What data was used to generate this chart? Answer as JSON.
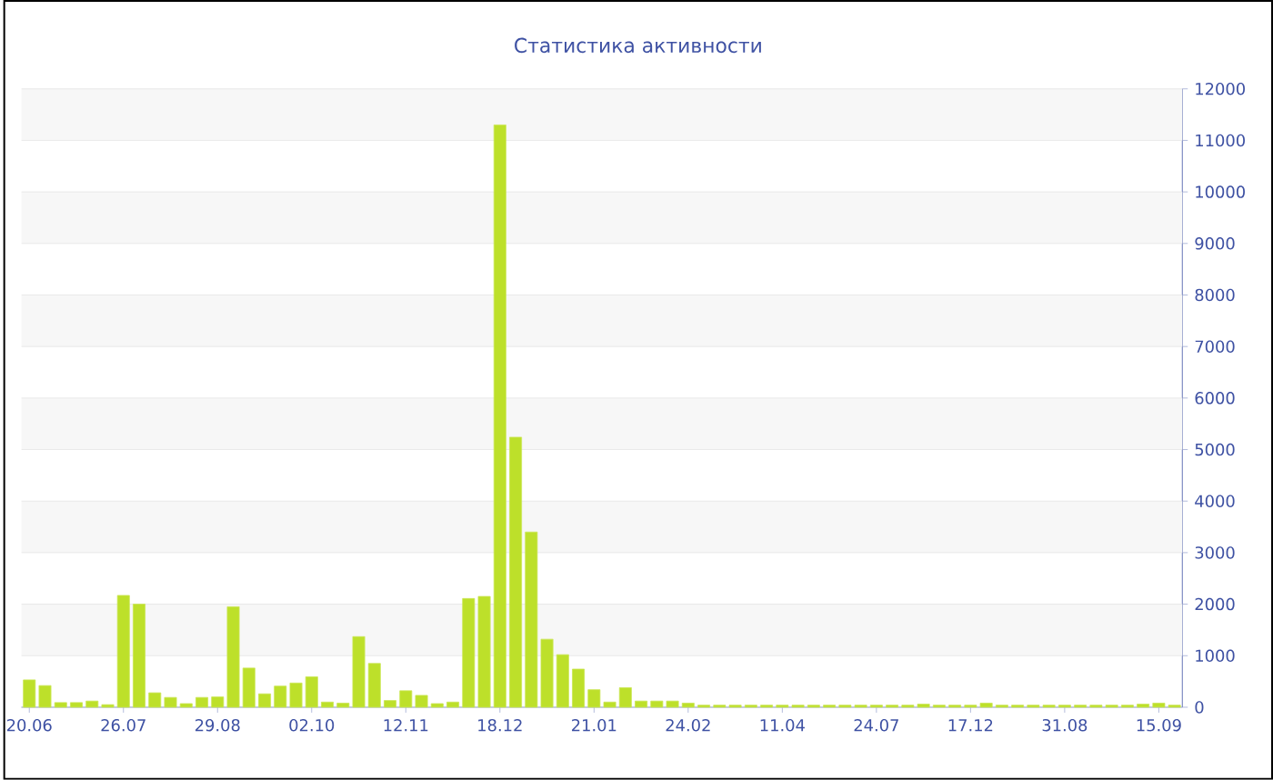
{
  "chart_data": {
    "type": "bar",
    "title": "Статистика активности",
    "categories": [
      "20.06",
      null,
      null,
      null,
      null,
      null,
      "26.07",
      null,
      null,
      null,
      null,
      null,
      "29.08",
      null,
      null,
      null,
      null,
      null,
      "02.10",
      null,
      null,
      null,
      null,
      null,
      "12.11",
      null,
      null,
      null,
      null,
      null,
      "18.12",
      null,
      null,
      null,
      null,
      null,
      "21.01",
      null,
      null,
      null,
      null,
      null,
      "24.02",
      null,
      null,
      null,
      null,
      null,
      "11.04",
      null,
      null,
      null,
      null,
      null,
      "24.07",
      null,
      null,
      null,
      null,
      null,
      "17.12",
      null,
      null,
      null,
      null,
      null,
      "31.08",
      null,
      null,
      null,
      null,
      null,
      "15.09",
      null
    ],
    "values": [
      530,
      420,
      90,
      90,
      120,
      50,
      2170,
      2000,
      280,
      190,
      70,
      190,
      200,
      1950,
      760,
      260,
      410,
      470,
      590,
      100,
      80,
      1370,
      850,
      130,
      320,
      230,
      70,
      100,
      2110,
      2150,
      11300,
      5240,
      3400,
      1320,
      1020,
      740,
      340,
      100,
      380,
      120,
      120,
      120,
      80,
      40,
      40,
      40,
      40,
      40,
      40,
      40,
      40,
      40,
      40,
      40,
      40,
      40,
      40,
      60,
      40,
      40,
      40,
      80,
      40,
      40,
      40,
      40,
      40,
      40,
      40,
      40,
      40,
      60,
      80,
      40
    ],
    "color": "#bde02a",
    "ylim": [
      0,
      12000
    ],
    "yticks": [
      0,
      1000,
      2000,
      3000,
      4000,
      5000,
      6000,
      7000,
      8000,
      9000,
      10000,
      11000,
      12000
    ],
    "grid": "y"
  }
}
